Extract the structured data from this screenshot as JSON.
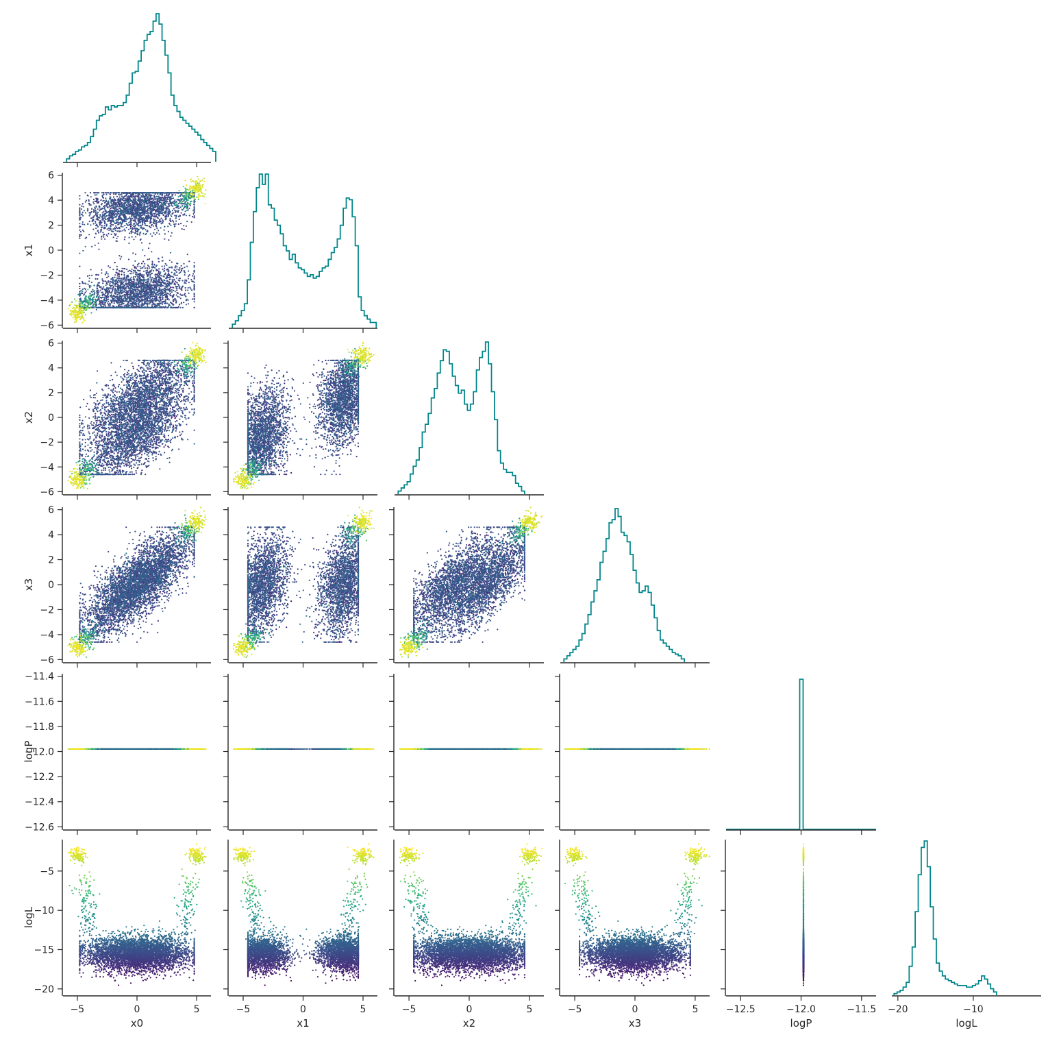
{
  "chart_data": {
    "type": "corner",
    "variables": [
      "x0",
      "x1",
      "x2",
      "x3",
      "logP",
      "logL"
    ],
    "axis_labels": {
      "x0": "x0",
      "x1": "x1",
      "x2": "x2",
      "x3": "x3",
      "logP": "logP",
      "logL": "logL"
    },
    "ranges": {
      "x0": [
        -6.2,
        6.2
      ],
      "x1": [
        -6.2,
        6.2
      ],
      "x2": [
        -6.2,
        6.2
      ],
      "x3": [
        -6.2,
        6.2
      ],
      "logP": [
        -12.62,
        -11.38
      ],
      "logL": [
        -20.8,
        -1.0
      ]
    },
    "ticks": {
      "x0": [
        -5,
        0,
        5
      ],
      "x1": [
        -5,
        0,
        5
      ],
      "x2": [
        -5,
        0,
        5
      ],
      "x3": [
        -5,
        0,
        5
      ],
      "logP": [
        -12.5,
        -12.0,
        -11.5
      ],
      "logL": [
        -20,
        -10
      ]
    },
    "y_ticks": {
      "x1": [
        -6,
        -4,
        -2,
        0,
        2,
        4,
        6
      ],
      "x2": [
        -6,
        -4,
        -2,
        0,
        2,
        4,
        6
      ],
      "x3": [
        -6,
        -4,
        -2,
        0,
        2,
        4,
        6
      ],
      "logP": [
        -12.6,
        -12.4,
        -12.2,
        -12.0,
        -11.8,
        -11.6,
        -11.4
      ],
      "logL": [
        -20,
        -15,
        -10,
        -5
      ]
    },
    "tick_text": {
      "-5": "−5",
      "0": "0",
      "5": "5",
      "-6": "−6",
      "-4": "−4",
      "-2": "−2",
      "2": "2",
      "4": "4",
      "6": "6",
      "-12.5": "−12.5",
      "-12.0": "−12.0",
      "-11.5": "−11.5",
      "-12.6": "−12.6",
      "-12.4": "−12.4",
      "-12.2": "−12.2",
      "-11.8": "−11.8",
      "-11.6": "−11.6",
      "-11.4": "−11.4",
      "-20": "−20",
      "-15": "−15",
      "-10": "−10"
    },
    "logP_value": -11.98,
    "histograms": {
      "x0": {
        "bin_start": -5.9,
        "bin_width": 0.25,
        "counts": [
          2,
          4,
          5,
          7,
          8,
          10,
          11,
          13,
          17,
          22,
          28,
          31,
          32,
          37,
          35,
          38,
          37,
          38,
          38,
          40,
          45,
          53,
          60,
          61,
          68,
          75,
          82,
          86,
          88,
          95,
          100,
          93,
          82,
          72,
          60,
          45,
          38,
          34,
          30,
          28,
          26,
          24,
          22,
          20,
          18,
          15,
          13,
          11,
          9,
          7
        ]
      },
      "x1": {
        "bin_start": -5.9,
        "bin_width": 0.25,
        "counts": [
          2,
          4,
          7,
          10,
          14,
          28,
          50,
          68,
          82,
          90,
          84,
          90,
          72,
          70,
          63,
          60,
          55,
          48,
          45,
          40,
          43,
          38,
          35,
          34,
          32,
          30,
          31,
          29,
          30,
          33,
          35,
          36,
          40,
          44,
          47,
          52,
          60,
          70,
          76,
          75,
          65,
          48,
          18,
          10,
          7,
          5,
          3,
          3
        ]
      },
      "x2": {
        "bin_start": -5.9,
        "bin_width": 0.25,
        "counts": [
          2,
          4,
          6,
          8,
          13,
          18,
          22,
          30,
          40,
          45,
          52,
          62,
          68,
          78,
          86,
          93,
          92,
          84,
          76,
          70,
          65,
          67,
          58,
          54,
          58,
          66,
          80,
          88,
          92,
          98,
          84,
          66,
          48,
          28,
          20,
          16,
          14,
          14,
          12,
          7,
          5,
          2
        ]
      },
      "x3": {
        "bin_start": -5.9,
        "bin_width": 0.25,
        "counts": [
          2,
          4,
          6,
          8,
          10,
          14,
          18,
          24,
          30,
          38,
          45,
          52,
          63,
          70,
          78,
          88,
          90,
          97,
          92,
          82,
          80,
          76,
          68,
          58,
          50,
          44,
          45,
          48,
          44,
          36,
          28,
          20,
          14,
          12,
          10,
          8,
          6,
          5,
          4,
          2
        ]
      },
      "logP": {
        "bin_start": -12.0,
        "bin_width": 0.02,
        "counts": [
          100
        ]
      },
      "logL": {
        "bin_start": -20.5,
        "bin_width": 0.4,
        "counts": [
          1,
          2,
          3,
          5,
          8,
          18,
          30,
          52,
          75,
          92,
          96,
          80,
          55,
          35,
          20,
          15,
          12,
          10,
          9,
          8,
          7,
          6,
          6,
          6,
          5,
          5,
          6,
          7,
          9,
          12,
          10,
          7,
          4,
          2
        ]
      }
    },
    "colormap": "viridis",
    "color_by": "logL",
    "colors": {
      "hist_line": "#00868b",
      "axis": "#262626",
      "viridis_low": "#440154",
      "viridis_mid": "#21918c",
      "viridis_high": "#fde725"
    },
    "scatter": {
      "samples": 5000,
      "mode_centers": [
        [
          -5.0,
          -5.0,
          -5.0,
          -5.0
        ],
        [
          5.0,
          5.0,
          5.0,
          5.0
        ]
      ],
      "mode_logL": -3.0,
      "bulk_logL_mean": -15.5
    }
  }
}
